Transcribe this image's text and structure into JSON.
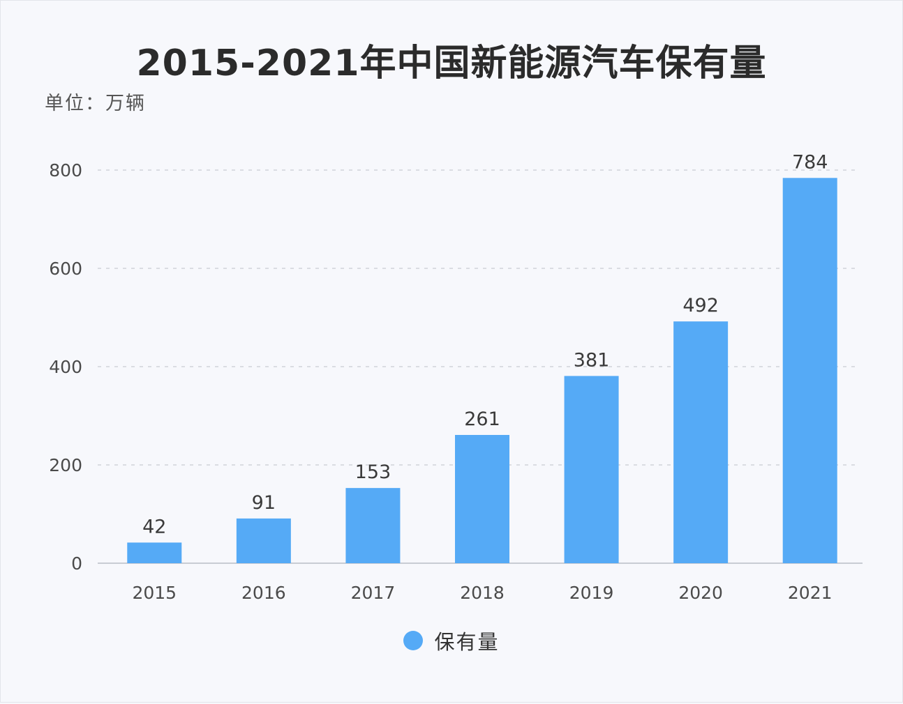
{
  "chart_data": {
    "type": "bar",
    "title": "2015-2021年中国新能源汽车保有量",
    "unit_label": "单位：万辆",
    "categories": [
      "2015",
      "2016",
      "2017",
      "2018",
      "2019",
      "2020",
      "2021"
    ],
    "series": [
      {
        "name": "保有量",
        "values": [
          42,
          91,
          153,
          261,
          381,
          492,
          784
        ]
      }
    ],
    "y_ticks": [
      0,
      200,
      400,
      600,
      800
    ],
    "ylim": [
      0,
      800
    ],
    "grid": true,
    "legend_position": "bottom-center",
    "bar_color": "#55aaf6"
  }
}
